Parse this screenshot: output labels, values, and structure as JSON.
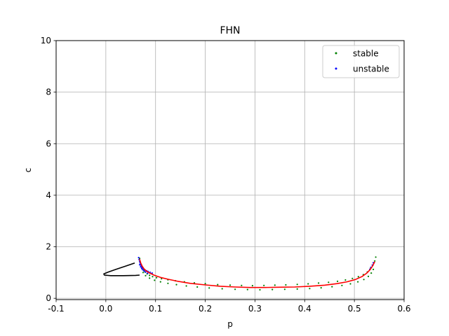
{
  "chart_data": {
    "type": "scatter",
    "title": "FHN",
    "xlabel": "p",
    "ylabel": "c",
    "xlim": [
      -0.1,
      0.6
    ],
    "ylim": [
      -0.05,
      10
    ],
    "xticks": [
      "-0.1",
      "0.0",
      "0.1",
      "0.2",
      "0.3",
      "0.4",
      "0.5",
      "0.6"
    ],
    "yticks": [
      "0",
      "2",
      "4",
      "6",
      "8",
      "10"
    ],
    "grid": true,
    "legend_position": "top-right",
    "series": [
      {
        "name": "stable",
        "type": "scatter",
        "color": "#008000",
        "points": [
          [
            0.068,
            1.55
          ],
          [
            0.069,
            1.42
          ],
          [
            0.071,
            1.3
          ],
          [
            0.073,
            1.2
          ],
          [
            0.076,
            1.1
          ],
          [
            0.079,
            1.02
          ],
          [
            0.083,
            0.95
          ],
          [
            0.088,
            0.89
          ],
          [
            0.094,
            0.84
          ],
          [
            0.102,
            0.8
          ],
          [
            0.112,
            0.76
          ],
          [
            0.125,
            0.72
          ],
          [
            0.14,
            0.68
          ],
          [
            0.158,
            0.64
          ],
          [
            0.178,
            0.6
          ],
          [
            0.2,
            0.57
          ],
          [
            0.225,
            0.53
          ],
          [
            0.25,
            0.51
          ],
          [
            0.273,
            0.5
          ],
          [
            0.295,
            0.49
          ],
          [
            0.318,
            0.5
          ],
          [
            0.34,
            0.51
          ],
          [
            0.362,
            0.52
          ],
          [
            0.385,
            0.54
          ],
          [
            0.407,
            0.56
          ],
          [
            0.428,
            0.59
          ],
          [
            0.448,
            0.62
          ],
          [
            0.466,
            0.66
          ],
          [
            0.482,
            0.71
          ],
          [
            0.496,
            0.77
          ],
          [
            0.508,
            0.84
          ],
          [
            0.518,
            0.92
          ],
          [
            0.526,
            1.02
          ],
          [
            0.532,
            1.14
          ],
          [
            0.537,
            1.28
          ],
          [
            0.541,
            1.45
          ],
          [
            0.543,
            1.6
          ],
          [
            0.075,
            1.0
          ],
          [
            0.08,
            0.88
          ],
          [
            0.088,
            0.78
          ],
          [
            0.098,
            0.7
          ],
          [
            0.11,
            0.64
          ],
          [
            0.125,
            0.58
          ],
          [
            0.142,
            0.53
          ],
          [
            0.162,
            0.48
          ],
          [
            0.184,
            0.44
          ],
          [
            0.208,
            0.4
          ],
          [
            0.234,
            0.37
          ],
          [
            0.26,
            0.35
          ],
          [
            0.285,
            0.34
          ],
          [
            0.31,
            0.33
          ],
          [
            0.335,
            0.34
          ],
          [
            0.36,
            0.35
          ],
          [
            0.385,
            0.36
          ],
          [
            0.41,
            0.38
          ],
          [
            0.433,
            0.41
          ],
          [
            0.455,
            0.45
          ],
          [
            0.475,
            0.5
          ],
          [
            0.492,
            0.56
          ],
          [
            0.507,
            0.64
          ],
          [
            0.519,
            0.73
          ],
          [
            0.528,
            0.85
          ],
          [
            0.534,
            0.98
          ],
          [
            0.538,
            1.12
          ]
        ]
      },
      {
        "name": "unstable",
        "type": "scatter",
        "color": "#0000ff",
        "points": [
          [
            0.066,
            1.58
          ],
          [
            0.067,
            1.5
          ],
          [
            0.068,
            1.43
          ],
          [
            0.069,
            1.37
          ],
          [
            0.07,
            1.31
          ],
          [
            0.071,
            1.26
          ],
          [
            0.073,
            1.21
          ],
          [
            0.075,
            1.17
          ],
          [
            0.077,
            1.13
          ],
          [
            0.079,
            1.1
          ],
          [
            0.082,
            1.07
          ],
          [
            0.085,
            1.04
          ],
          [
            0.089,
            1.01
          ],
          [
            0.093,
            0.98
          ],
          [
            0.068,
            1.3
          ],
          [
            0.07,
            1.22
          ],
          [
            0.072,
            1.16
          ],
          [
            0.074,
            1.11
          ],
          [
            0.077,
            1.06
          ],
          [
            0.08,
            1.02
          ],
          [
            0.084,
            0.97
          ],
          [
            0.531,
            1.12
          ],
          [
            0.533,
            1.2
          ],
          [
            0.536,
            1.29
          ],
          [
            0.538,
            1.38
          ]
        ]
      },
      {
        "name": "",
        "type": "line",
        "color": "#ff0000",
        "points": [
          [
            0.068,
            1.52
          ],
          [
            0.07,
            1.38
          ],
          [
            0.073,
            1.25
          ],
          [
            0.077,
            1.14
          ],
          [
            0.082,
            1.05
          ],
          [
            0.089,
            0.97
          ],
          [
            0.098,
            0.89
          ],
          [
            0.11,
            0.81
          ],
          [
            0.125,
            0.74
          ],
          [
            0.145,
            0.66
          ],
          [
            0.17,
            0.58
          ],
          [
            0.2,
            0.52
          ],
          [
            0.23,
            0.47
          ],
          [
            0.26,
            0.44
          ],
          [
            0.29,
            0.42
          ],
          [
            0.32,
            0.42
          ],
          [
            0.35,
            0.43
          ],
          [
            0.38,
            0.44
          ],
          [
            0.41,
            0.47
          ],
          [
            0.44,
            0.51
          ],
          [
            0.465,
            0.57
          ],
          [
            0.485,
            0.64
          ],
          [
            0.502,
            0.73
          ],
          [
            0.515,
            0.84
          ],
          [
            0.525,
            0.98
          ],
          [
            0.532,
            1.12
          ],
          [
            0.537,
            1.27
          ],
          [
            0.541,
            1.42
          ]
        ]
      },
      {
        "name": "",
        "type": "line",
        "color": "#000000",
        "points": [
          [
            0.058,
            1.37
          ],
          [
            0.04,
            1.25
          ],
          [
            0.02,
            1.12
          ],
          [
            0.005,
            1.02
          ],
          [
            -0.004,
            0.95
          ],
          [
            -0.003,
            0.9
          ],
          [
            0.01,
            0.88
          ],
          [
            0.035,
            0.88
          ],
          [
            0.06,
            0.89
          ],
          [
            0.068,
            0.9
          ]
        ]
      }
    ]
  }
}
